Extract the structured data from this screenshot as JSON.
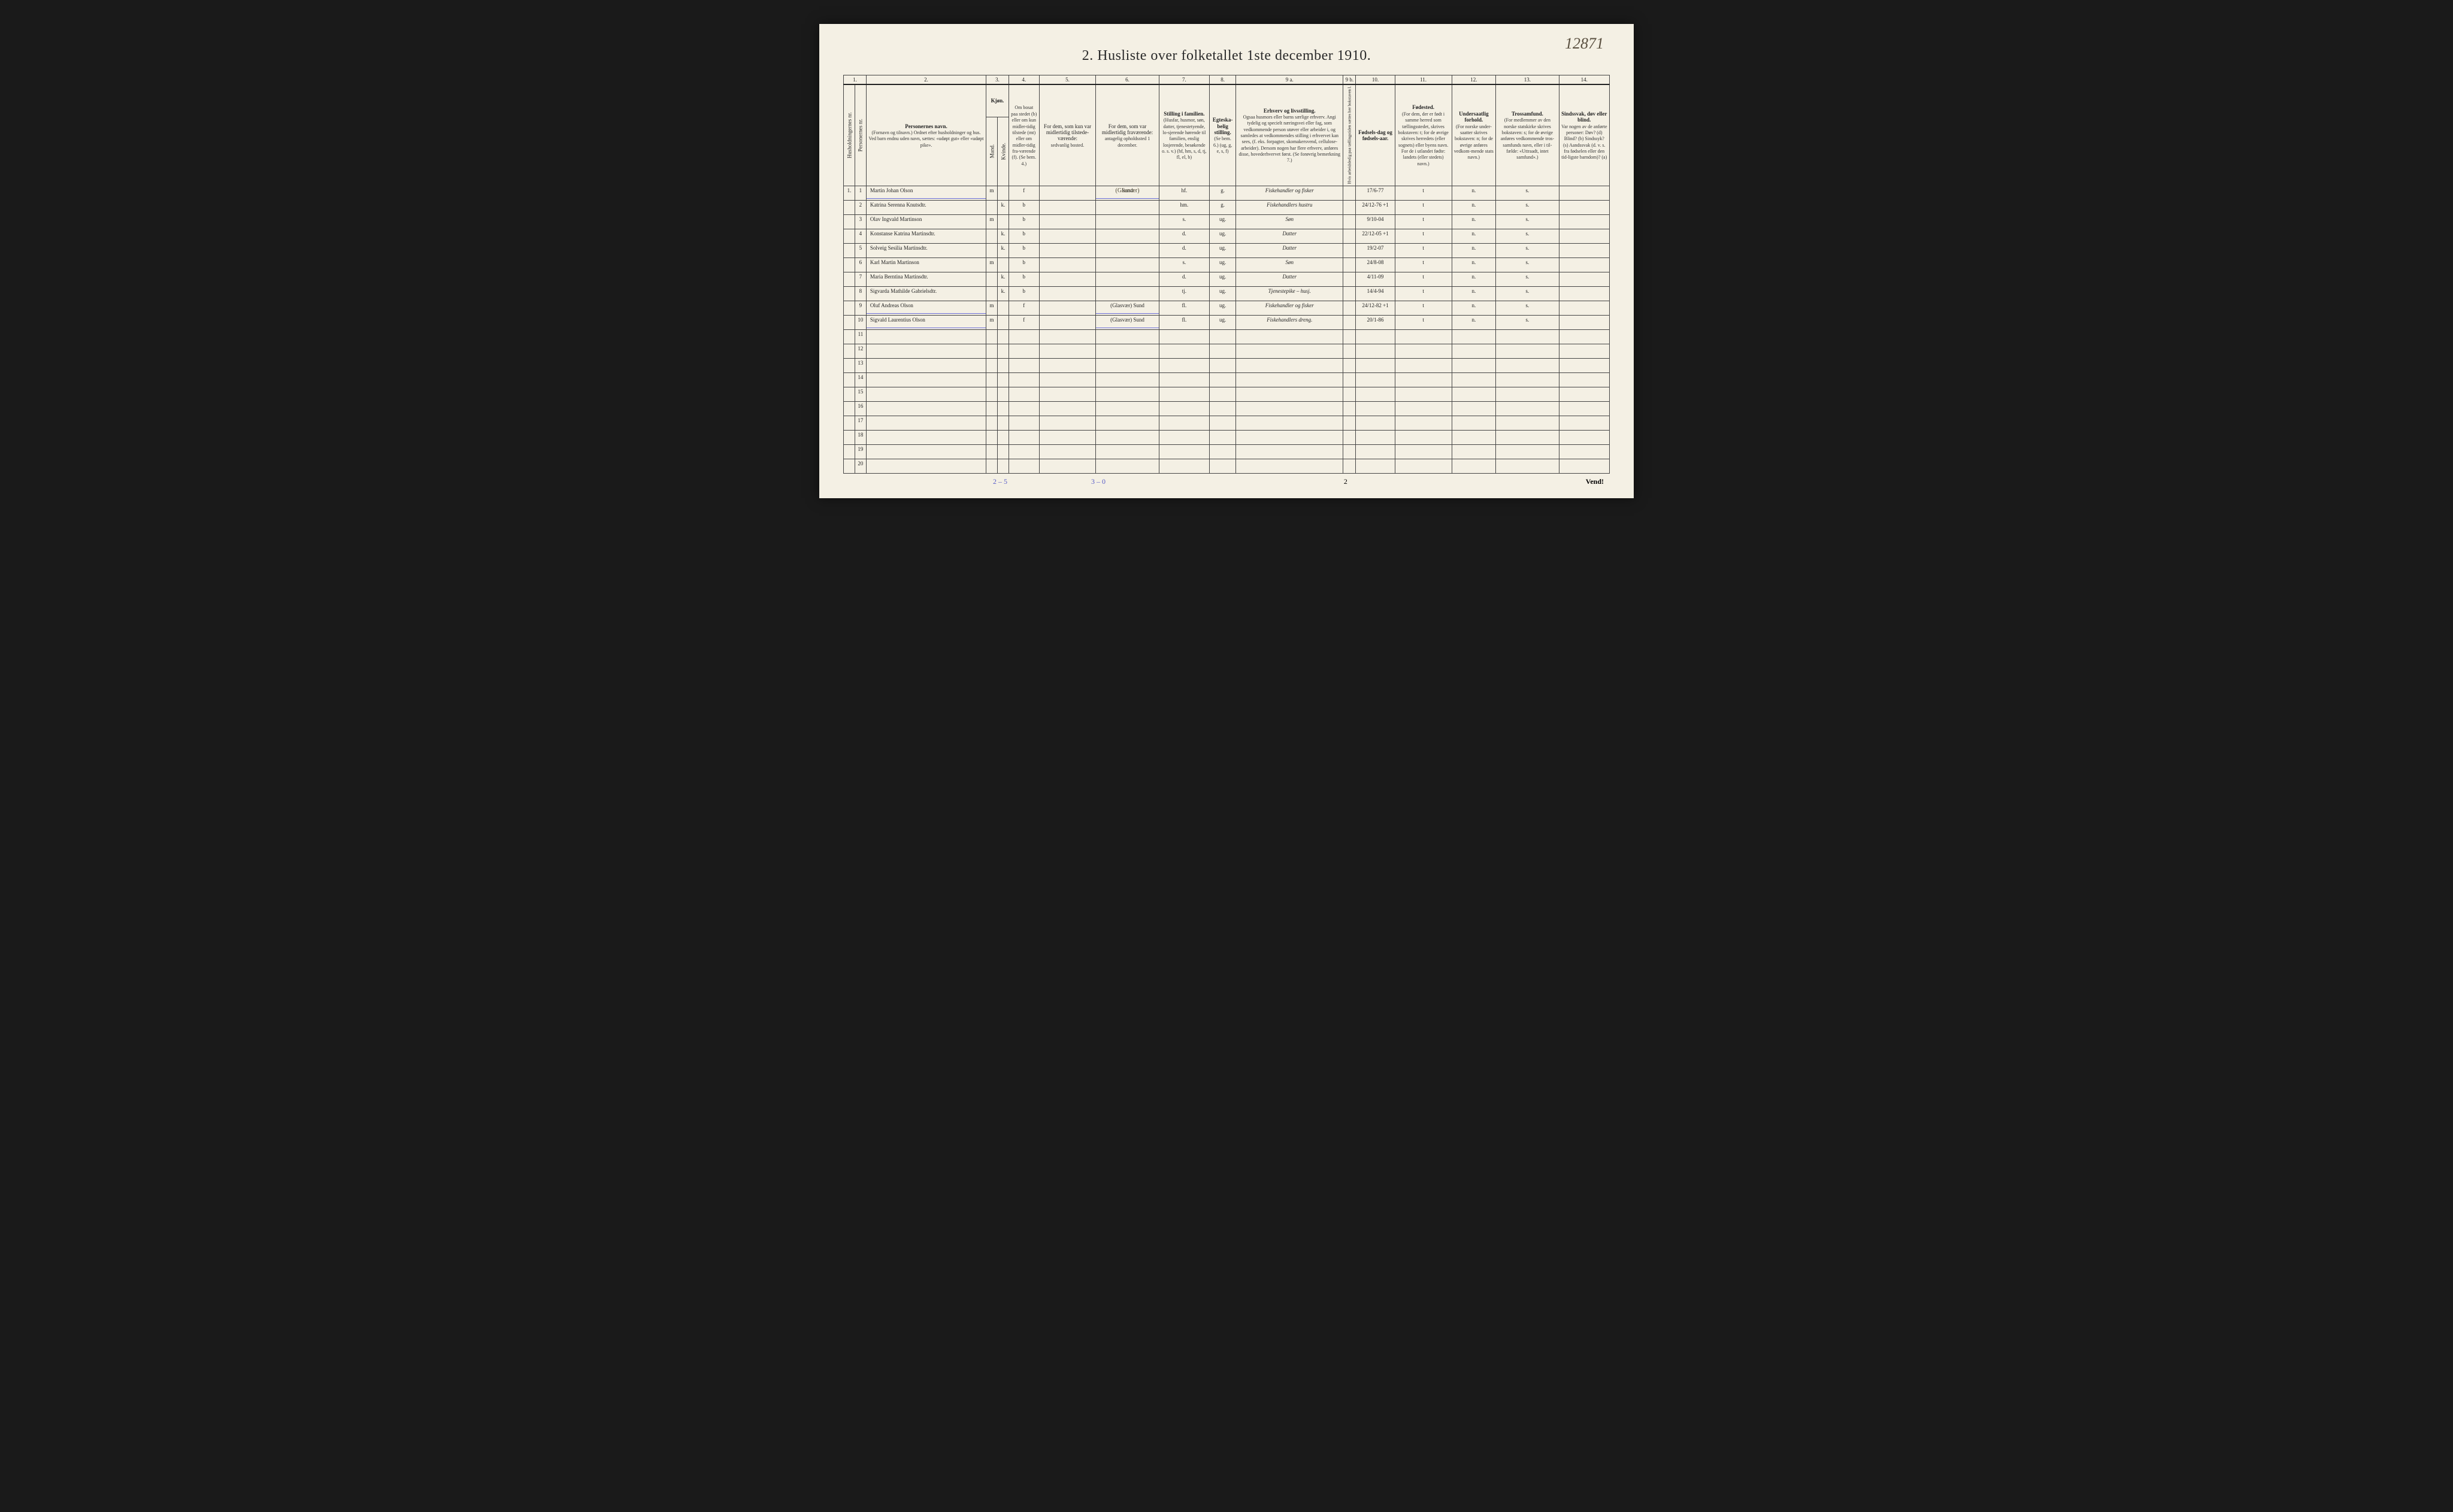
{
  "corner_note": "12871",
  "title": "2.  Husliste over folketallet 1ste december 1910.",
  "colnums": [
    "1.",
    "",
    "2.",
    "3.",
    "",
    "4.",
    "5.",
    "6.",
    "7.",
    "8.",
    "9 a.",
    "9 b.",
    "10.",
    "11.",
    "12.",
    "13.",
    "14."
  ],
  "headers": {
    "c1": "Husholdningernes nr.",
    "c2": "Personernes nr.",
    "c3_t": "Personernes navn.",
    "c3_s": "(Fornavn og tilnavn.) Ordnet efter husholdninger og hus. Ved barn endnu uden navn, sættes: «udøpt gut» eller «udøpt pike».",
    "c4_t": "Kjøn.",
    "c4_m": "Mand.",
    "c4_k": "Kvinde.",
    "c4_mk": "m.  k.",
    "c5_t": "Om bosat paa stedet (b) eller om kun midler-tidig tilstede (mt) eller om midler-tidig fra-værende (f). (Se bem. 4.)",
    "c6_t": "For dem, som kun var midlertidig tilstede-værende:",
    "c6_s": "sedvanlig bosted.",
    "c7_t": "For dem, som var midlertidig fraværende:",
    "c7_s": "antagelig opholdssted 1 december.",
    "c8_t": "Stilling i familien.",
    "c8_s": "(Husfar, husmor, søn, datter, tjenestetyende, lo-sjerende hørende til familien, enslig losjerende, besøkende o. s. v.) (hf, hm, s, d, tj, fl, el, b)",
    "c9_t": "Egteska-belig stilling.",
    "c9_s": "(Se bem. 6.) (ug, g, e, s, f)",
    "c10_t": "Erhverv og livsstilling.",
    "c10_s": "Ogsaa husmors eller barns særlige erhverv. Angi tydelig og specielt næringsvei eller fag, som vedkommende person utøver eller arbeider i, og samledes at vedkommendes stilling i erhvervet kan sees, (f. eks. forpagter, skomakersvend, cellulose-arbeider). Dersom nogen har flere erhverv, anføres disse, hovederhvervet først. (Se forøvrig bemerkning 7.)",
    "c10b": "Hvis arbeidsledig paa tællingstiden sættes her bokstaven l.",
    "c11_t": "Fødsels-dag og fødsels-aar.",
    "c12_t": "Fødested.",
    "c12_s": "(For dem, der er født i samme herred som tællingsstedet, skrives bokstaven: t; for de øvrige skrives herredets (eller sognets) eller byens navn. For de i utlandet fødte: landets (eller stedets) navn.)",
    "c13_t": "Undersaatlig forhold.",
    "c13_s": "(For norske under-saatter skrives bokstaven: n; for de øvrige anføres vedkom-mende stats navn.)",
    "c14_t": "Trossamfund.",
    "c14_s": "(For medlemmer av den norske statskirke skrives bokstaven: s; for de øvrige anføres vedkommende tros-samfunds navn, eller i til-fælde: «Uttraadt, intet samfund».)",
    "c15_t": "Sindssvak, døv eller blind.",
    "c15_s": "Var nogen av de anførte personer: Døv? (d) Blind? (b) Sindssyk? (s) Aandssvak (d. v. s. fra fødselen eller den tid-ligste barndom)? (a)"
  },
  "top_scratch": "(Glasvær)",
  "rows": [
    {
      "hn": "1.",
      "pn": "1",
      "name": "Martin Johan Olson",
      "m": "m",
      "k": "",
      "res": "f",
      "away": "Sund",
      "fam": "hf.",
      "mar": "g.",
      "occ": "Fiskehandler og fisker",
      "dob": "17/6-77",
      "bp": "t",
      "nat": "n.",
      "rel": "s.",
      "dis": ""
    },
    {
      "hn": "",
      "pn": "2",
      "name": "Katrina Serenna Knutsdtr.",
      "m": "",
      "k": "k.",
      "res": "b",
      "away": "",
      "fam": "hm.",
      "mar": "g.",
      "occ": "Fiskehandlers hustru",
      "dob": "24/12-76 +1",
      "bp": "t",
      "nat": "n.",
      "rel": "s.",
      "dis": ""
    },
    {
      "hn": "",
      "pn": "3",
      "name": "Olav Ingvald Martinson",
      "m": "m",
      "k": "",
      "res": "b",
      "away": "",
      "fam": "s.",
      "mar": "ug.",
      "occ": "Søn",
      "dob": "9/10-04",
      "bp": "t",
      "nat": "n.",
      "rel": "s.",
      "dis": ""
    },
    {
      "hn": "",
      "pn": "4",
      "name": "Konstanse Katrina Martinsdtr.",
      "m": "",
      "k": "k.",
      "res": "b",
      "away": "",
      "fam": "d.",
      "mar": "ug.",
      "occ": "Datter",
      "dob": "22/12-05 +1",
      "bp": "t",
      "nat": "n.",
      "rel": "s.",
      "dis": ""
    },
    {
      "hn": "",
      "pn": "5",
      "name": "Solveig Sesilia Martinsdtr.",
      "m": "",
      "k": "k.",
      "res": "b",
      "away": "",
      "fam": "d.",
      "mar": "ug.",
      "occ": "Datter",
      "dob": "19/2-07",
      "bp": "t",
      "nat": "n.",
      "rel": "s.",
      "dis": ""
    },
    {
      "hn": "",
      "pn": "6",
      "name": "Karl Martin Martinson",
      "m": "m",
      "k": "",
      "res": "b",
      "away": "",
      "fam": "s.",
      "mar": "ug.",
      "occ": "Søn",
      "dob": "24/8-08",
      "bp": "t",
      "nat": "n.",
      "rel": "s.",
      "dis": ""
    },
    {
      "hn": "",
      "pn": "7",
      "name": "Maria Berntina Martinsdtr.",
      "m": "",
      "k": "k.",
      "res": "b",
      "away": "",
      "fam": "d.",
      "mar": "ug.",
      "occ": "Datter",
      "dob": "4/11-09",
      "bp": "t",
      "nat": "n.",
      "rel": "s.",
      "dis": ""
    },
    {
      "hn": "",
      "pn": "8",
      "name": "Sigvarda Mathilde Gabrielsdtr.",
      "m": "",
      "k": "k.",
      "res": "b",
      "away": "",
      "fam": "tj.",
      "mar": "ug.",
      "occ": "Tjenestepike – husj.",
      "dob": "14/4-94",
      "bp": "t",
      "nat": "n.",
      "rel": "s.",
      "dis": ""
    },
    {
      "hn": "",
      "pn": "9",
      "name": "Oluf Andreas Olson",
      "m": "m",
      "k": "",
      "res": "f",
      "away": "(Glasvær) Sund",
      "fam": "fl.",
      "mar": "ug.",
      "occ": "Fiskehandler og fisker",
      "dob": "24/12-82 +1",
      "bp": "t",
      "nat": "n.",
      "rel": "s.",
      "dis": ""
    },
    {
      "hn": "",
      "pn": "10",
      "name": "Sigvald Laurentius Olson",
      "m": "m",
      "k": "",
      "res": "f",
      "away": "(Glasvær) Sund",
      "fam": "fl.",
      "mar": "ug.",
      "occ": "Fiskehandlers dreng.",
      "dob": "20/1-86",
      "bp": "t",
      "nat": "n.",
      "rel": "s.",
      "dis": ""
    }
  ],
  "empty_rows": [
    "11",
    "12",
    "13",
    "14",
    "15",
    "16",
    "17",
    "18",
    "19",
    "20"
  ],
  "footer": {
    "note1": "2 – 5",
    "note2": "3 – 0",
    "page": "2",
    "vend": "Vend!"
  },
  "blue_underline_rows": [
    0,
    8,
    9
  ],
  "colors": {
    "paper": "#f4f0e4",
    "ink": "#222",
    "pencil": "#5a5040",
    "blue": "#6a6ed8"
  }
}
